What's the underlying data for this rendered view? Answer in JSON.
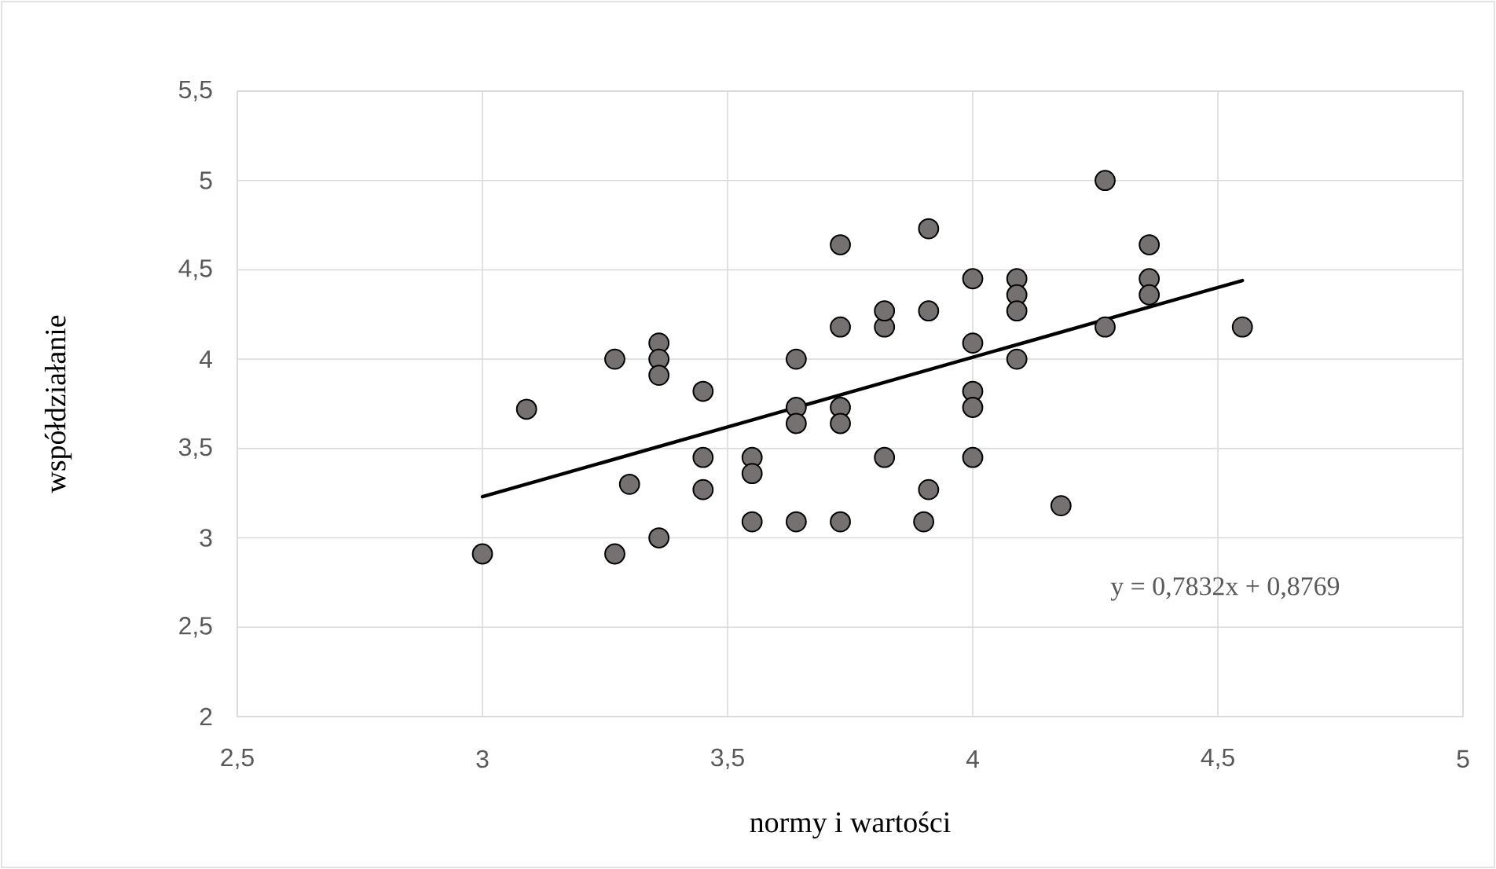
{
  "chart_data": {
    "type": "scatter",
    "xlabel": "normy i wartości",
    "ylabel": "współdziałanie",
    "xlim": [
      2.5,
      5
    ],
    "xticks": [
      {
        "value": 2.5,
        "label": "2,5"
      },
      3,
      {
        "value": 3.5,
        "label": "3,5"
      },
      4,
      {
        "value": 4.5,
        "label": "4,5"
      },
      5
    ],
    "ylim": [
      2,
      5.5
    ],
    "yticks": [
      2,
      {
        "value": 2.5,
        "label": "2,5"
      },
      3,
      {
        "value": 3.5,
        "label": "3,5"
      },
      4,
      {
        "value": 4.5,
        "label": "4,5"
      },
      5,
      {
        "value": 5.5,
        "label": "5,5"
      }
    ],
    "grid": true,
    "annotations": [
      "y = 0,7832x + 0,8769"
    ],
    "series": [
      {
        "marker": "circle",
        "color": "#767171",
        "x": [
          3.0,
          3.09,
          3.27,
          3.27,
          3.3,
          3.36,
          3.36,
          3.36,
          3.36,
          3.45,
          3.45,
          3.45,
          3.55,
          3.55,
          3.55,
          3.64,
          3.64,
          3.64,
          3.64,
          3.73,
          3.73,
          3.73,
          3.73,
          3.73,
          3.82,
          3.82,
          3.82,
          3.91,
          3.91,
          3.91,
          3.9,
          4.0,
          4.0,
          4.0,
          4.0,
          4.0,
          4.09,
          4.09,
          4.09,
          4.09,
          4.18,
          4.27,
          4.27,
          4.36,
          4.36,
          4.36,
          4.55
        ],
        "values": [
          2.91,
          3.72,
          4.0,
          2.91,
          3.3,
          4.09,
          4.0,
          3.91,
          3.0,
          3.82,
          3.45,
          3.27,
          3.45,
          3.36,
          3.09,
          4.0,
          3.73,
          3.64,
          3.09,
          4.64,
          4.18,
          3.73,
          3.64,
          3.09,
          4.18,
          4.27,
          3.45,
          4.73,
          4.27,
          3.27,
          3.09,
          4.45,
          4.09,
          3.82,
          3.73,
          3.45,
          4.45,
          4.36,
          4.27,
          4.0,
          3.18,
          5.0,
          4.18,
          4.64,
          4.45,
          4.36,
          4.18
        ]
      },
      {
        "type": "line",
        "marker": "none",
        "line_style": "solid",
        "color": "#000000",
        "x": [
          3.0,
          4.55
        ],
        "values": [
          3.23,
          4.44
        ]
      }
    ]
  }
}
